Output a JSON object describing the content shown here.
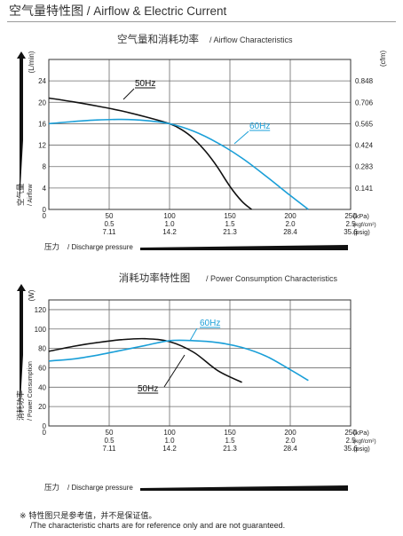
{
  "page": {
    "title_cn": "空气量特性图",
    "title_en": "/ Airflow & Electric Current"
  },
  "chart_data": [
    {
      "type": "line",
      "title_cn": "空气量和消耗功率",
      "title_en": "/ Airflow Characteristics",
      "ylabel_cn": "空气量",
      "ylabel_en": "/ Airflow",
      "ylabel_unit": "(L/min)",
      "y2label_unit": "(cfm)",
      "xlabel_cn": "压力",
      "xlabel_en": "/ Discharge pressure",
      "xlim": [
        0,
        250
      ],
      "ylim": [
        0,
        28
      ],
      "yticks": [
        0,
        4,
        8,
        12,
        16,
        20,
        24
      ],
      "y2ticks": [
        "0.141",
        "0.283",
        "0.424",
        "0.565",
        "0.706",
        "0.848"
      ],
      "xticks_kpa": [
        "50",
        "100",
        "150",
        "200",
        "250"
      ],
      "xticks_kgf": [
        "0.5",
        "1.0",
        "1.5",
        "2.0",
        "2.5"
      ],
      "xticks_psig": [
        "7.11",
        "14.2",
        "21.3",
        "28.4",
        "35.6"
      ],
      "x_units": [
        "(kPa)",
        "(kgf/cm²)",
        "(psig)"
      ],
      "grid": true,
      "series": [
        {
          "name": "50Hz",
          "color": "#111111",
          "x": [
            0,
            20,
            40,
            60,
            80,
            100,
            110,
            120,
            130,
            140,
            150,
            160,
            168
          ],
          "y": [
            20.8,
            20.1,
            19.3,
            18.4,
            17.3,
            16.0,
            14.9,
            13.2,
            10.8,
            7.8,
            4.3,
            1.5,
            0
          ]
        },
        {
          "name": "60Hz",
          "color": "#1a9fd8",
          "x": [
            0,
            20,
            40,
            60,
            80,
            100,
            120,
            140,
            160,
            180,
            200,
            215
          ],
          "y": [
            16.0,
            16.4,
            16.7,
            16.8,
            16.6,
            16.0,
            14.6,
            12.4,
            9.6,
            6.2,
            2.6,
            0
          ]
        }
      ]
    },
    {
      "type": "line",
      "title_cn": "消耗功率特性图",
      "title_en": "/ Power Consumption Characteristics",
      "ylabel_cn": "消耗功率",
      "ylabel_en": "/ Power Consumption",
      "ylabel_unit": "(W)",
      "xlabel_cn": "压力",
      "xlabel_en": "/ Discharge pressure",
      "xlim": [
        0,
        250
      ],
      "ylim": [
        0,
        130
      ],
      "yticks": [
        0,
        20,
        40,
        60,
        80,
        100,
        120
      ],
      "xticks_kpa": [
        "50",
        "100",
        "150",
        "200",
        "250"
      ],
      "xticks_kgf": [
        "0.5",
        "1.0",
        "1.5",
        "2.0",
        "2.5"
      ],
      "xticks_psig": [
        "7.11",
        "14.2",
        "21.3",
        "28.4",
        "35.6"
      ],
      "x_units": [
        "(kPa)",
        "(kgf/cm²)",
        "(psig)"
      ],
      "grid": true,
      "series": [
        {
          "name": "50Hz",
          "color": "#111111",
          "x": [
            0,
            20,
            40,
            60,
            80,
            100,
            120,
            140,
            160
          ],
          "y": [
            77,
            82,
            86,
            89,
            90,
            87,
            76,
            57,
            45
          ]
        },
        {
          "name": "60Hz",
          "color": "#1a9fd8",
          "x": [
            0,
            20,
            40,
            60,
            80,
            100,
            120,
            140,
            160,
            180,
            200,
            215
          ],
          "y": [
            67,
            69,
            73,
            78,
            83,
            88,
            88,
            86,
            81,
            72,
            58,
            47
          ]
        }
      ]
    }
  ],
  "notes": {
    "line1": "※ 特性图只是参考值，并不是保证值。",
    "line2": "/The characteristic charts are for reference only and are not guaranteed."
  }
}
